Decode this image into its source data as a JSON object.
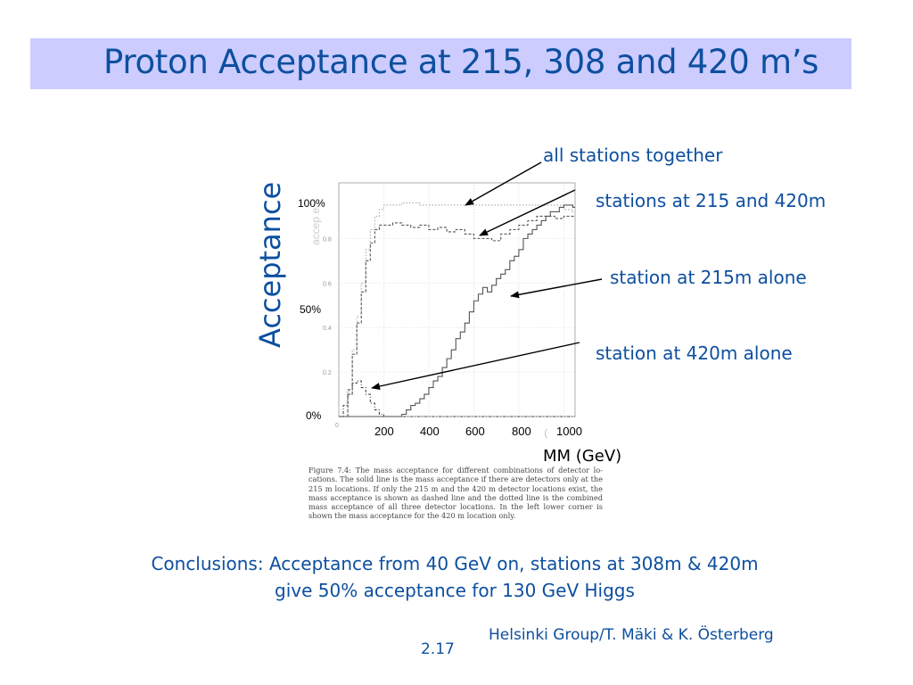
{
  "slide": {
    "title": "Proton Acceptance at 215, 308 and 420 m’s",
    "ylabel": "Acceptance",
    "xlabel": "MM (GeV)",
    "pct_labels": [
      "100%",
      "50%",
      "0%"
    ],
    "annotations": {
      "all": "all stations together",
      "s215_420": "stations at 215 and 420m",
      "s215": "station at 215m alone",
      "s420": "station at 420m alone"
    },
    "caption": "Figure 7.4: The mass acceptance for different combinations of detector lo-cations. The solid line is the mass acceptance if there are detectors only at the 215 m locations. If only the 215 m and the 420 m detector locations exist, the mass acceptance is shown as dashed line and the dotted line is the combined mass acceptance of all three detector locations. In the left lower corner is shown the mass acceptance for the 420 m location only.",
    "conclusion_line1": "Conclusions: Acceptance from 40 GeV on, stations at 308m & 420m",
    "conclusion_line2": "give 50% acceptance for 130 GeV Higgs",
    "footer": "Helsinki Group/T. Mäki & K. Österberg",
    "page_number": "2.17"
  },
  "colors": {
    "title_band": "#ccccff",
    "text_blue": "#0d4f9f"
  },
  "chart_data": {
    "type": "line",
    "step": true,
    "xlabel": "MM (GeV)",
    "ylabel": "Acceptance",
    "inner_ylabel": "accep e",
    "xlim": [
      0,
      1050
    ],
    "ylim": [
      0,
      1.05
    ],
    "x_ticks": [
      200,
      400,
      600,
      800,
      1000
    ],
    "x_tick_labels": [
      "200",
      "400",
      "600",
      "800",
      "1000"
    ],
    "inner_x_tick_labels": [
      "0",
      "("
    ],
    "y_ticks": [
      0.2,
      0.4,
      0.6,
      0.8
    ],
    "y_tick_labels": [
      "0.2",
      "0.4",
      "0.6",
      "0.8"
    ],
    "series": [
      {
        "name": "all stations together",
        "style": "dotted",
        "x": [
          0,
          40,
          60,
          80,
          100,
          120,
          140,
          160,
          180,
          200,
          240,
          280,
          320,
          360,
          400,
          440,
          480,
          520,
          560,
          600,
          640,
          680,
          720,
          760,
          800,
          840,
          880,
          920,
          960,
          1000,
          1040
        ],
        "y": [
          0,
          0.1,
          0.3,
          0.45,
          0.6,
          0.75,
          0.84,
          0.9,
          0.93,
          0.95,
          0.95,
          0.96,
          0.96,
          0.95,
          0.95,
          0.95,
          0.95,
          0.95,
          0.95,
          0.95,
          0.95,
          0.95,
          0.95,
          0.95,
          0.95,
          0.95,
          0.95,
          0.95,
          0.95,
          0.93,
          0.92
        ]
      },
      {
        "name": "stations at 215 and 420m",
        "style": "dashed",
        "x": [
          0,
          40,
          60,
          80,
          100,
          120,
          140,
          160,
          180,
          200,
          240,
          280,
          320,
          360,
          400,
          440,
          480,
          520,
          560,
          600,
          640,
          680,
          720,
          760,
          800,
          840,
          880,
          920,
          960,
          1000,
          1040
        ],
        "y": [
          0,
          0.1,
          0.28,
          0.42,
          0.56,
          0.7,
          0.78,
          0.84,
          0.86,
          0.86,
          0.87,
          0.86,
          0.85,
          0.86,
          0.84,
          0.85,
          0.83,
          0.84,
          0.82,
          0.8,
          0.8,
          0.79,
          0.82,
          0.84,
          0.86,
          0.88,
          0.9,
          0.9,
          0.89,
          0.9,
          0.9
        ]
      },
      {
        "name": "station at 215m alone",
        "style": "solid",
        "x": [
          0,
          280,
          300,
          320,
          340,
          360,
          380,
          400,
          420,
          440,
          460,
          480,
          500,
          520,
          540,
          560,
          580,
          600,
          620,
          640,
          660,
          680,
          700,
          720,
          740,
          760,
          780,
          800,
          820,
          840,
          860,
          880,
          900,
          920,
          940,
          960,
          980,
          1000,
          1020,
          1040
        ],
        "y": [
          0,
          0.01,
          0.03,
          0.05,
          0.06,
          0.08,
          0.1,
          0.13,
          0.16,
          0.18,
          0.22,
          0.26,
          0.3,
          0.35,
          0.38,
          0.42,
          0.47,
          0.52,
          0.55,
          0.58,
          0.56,
          0.59,
          0.62,
          0.64,
          0.66,
          0.7,
          0.72,
          0.75,
          0.8,
          0.82,
          0.84,
          0.86,
          0.88,
          0.9,
          0.92,
          0.92,
          0.94,
          0.95,
          0.95,
          0.94
        ]
      },
      {
        "name": "station at 420m alone",
        "style": "dash-dot",
        "x": [
          0,
          20,
          40,
          60,
          80,
          100,
          120,
          140,
          160,
          180,
          200,
          240,
          280
        ],
        "y": [
          0,
          0.05,
          0.12,
          0.15,
          0.16,
          0.13,
          0.1,
          0.06,
          0.03,
          0.01,
          0,
          0,
          0
        ]
      }
    ]
  }
}
